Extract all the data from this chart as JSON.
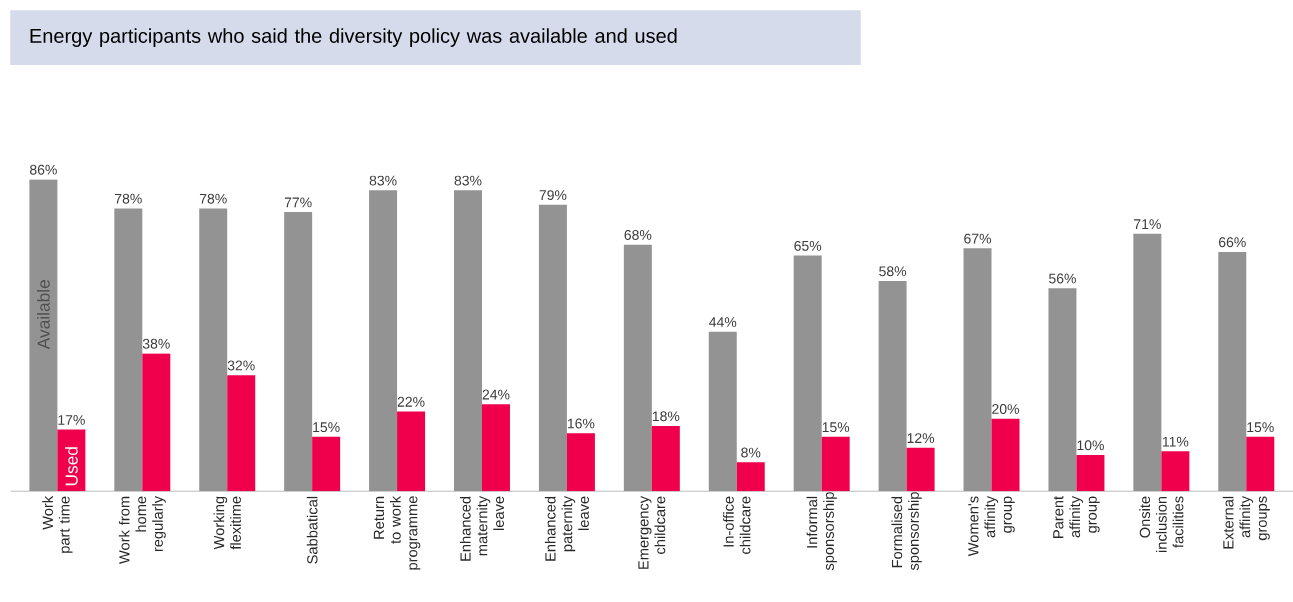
{
  "chart_data": {
    "type": "bar",
    "title": "Energy participants who said the diversity policy was available and used",
    "categories": [
      "Work part time",
      "Work from home regularly",
      "Working flexitime",
      "Sabbatical",
      "Return to work programme",
      "Enhanced maternity leave",
      "Enhanced paternity leave",
      "Emergency childcare",
      "In-office childcare",
      "Informal sponsorship",
      "Formalised sponsorship",
      "Women's affinity group",
      "Parent affinity group",
      "Onsite inclusion facilities",
      "External affinity groups"
    ],
    "series": [
      {
        "name": "Available",
        "color": "#939393",
        "values": [
          86,
          78,
          78,
          77,
          83,
          83,
          79,
          68,
          44,
          65,
          58,
          67,
          56,
          71,
          66
        ],
        "value_labels": [
          "86%",
          "78%",
          "78%",
          "77%",
          "83%",
          "83%",
          "79%",
          "68%",
          "44%",
          "65%",
          "58%",
          "67%",
          "56%",
          "71%",
          "66%"
        ]
      },
      {
        "name": "Used",
        "color": "#f0004c",
        "values": [
          17,
          38,
          32,
          15,
          22,
          24,
          16,
          18,
          8,
          15,
          12,
          20,
          10,
          11,
          15
        ],
        "value_labels": [
          "17%",
          "38%",
          "32%",
          "15%",
          "22%",
          "24%",
          "16%",
          "18%",
          "8%",
          "15%",
          "12%",
          "20%",
          "10%",
          "11%",
          "15%"
        ]
      }
    ],
    "grid": false
  }
}
